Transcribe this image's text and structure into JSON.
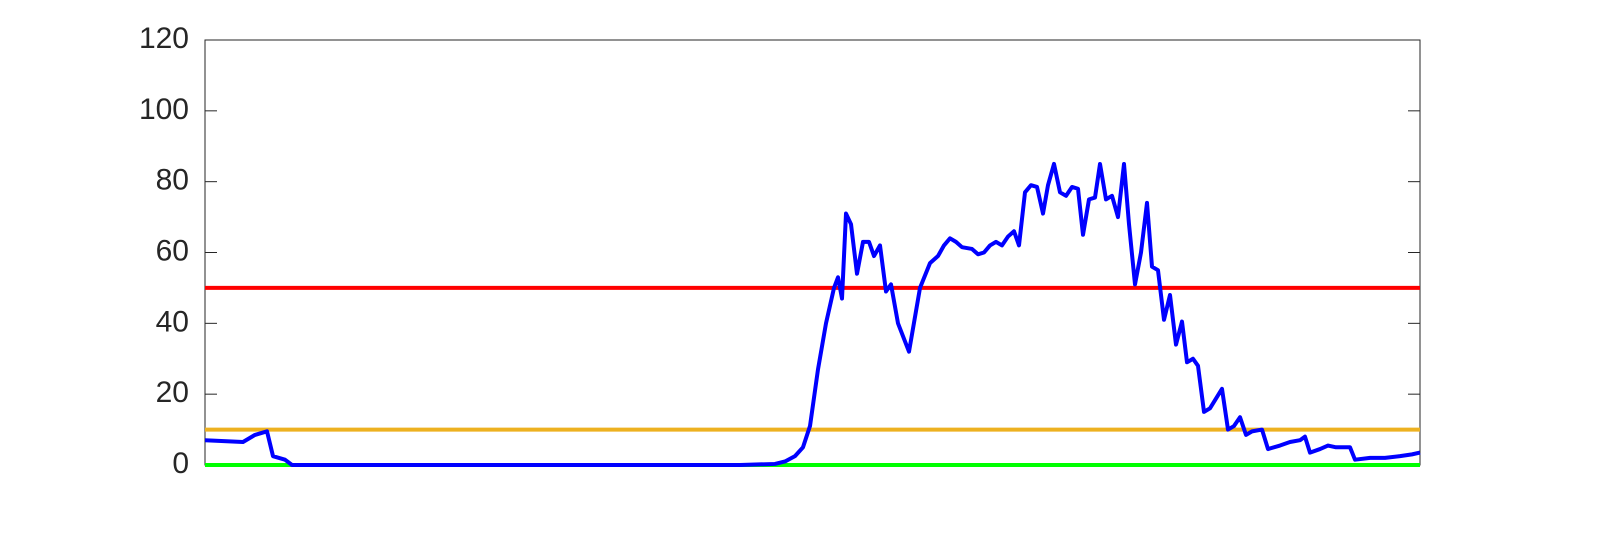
{
  "chart_data": {
    "type": "line",
    "x": [
      0,
      38,
      50,
      62,
      68,
      80,
      87,
      535,
      570,
      580,
      590,
      598,
      605,
      613,
      621,
      629,
      633,
      637,
      641,
      646,
      652,
      658,
      664,
      669,
      675,
      681,
      686,
      693,
      704,
      715,
      725,
      733,
      739,
      745,
      751,
      757,
      767,
      773,
      779,
      785,
      791,
      797,
      803,
      809,
      814,
      820,
      826,
      832,
      838,
      843,
      849,
      855,
      861,
      867,
      873,
      878,
      884,
      890,
      895,
      901,
      907,
      913,
      919,
      924,
      930,
      936,
      942,
      947,
      953,
      959,
      965,
      971,
      977,
      982,
      988,
      993,
      999,
      1005,
      1017,
      1023,
      1029,
      1035,
      1041,
      1047,
      1057,
      1063,
      1075,
      1085,
      1095,
      1100,
      1105,
      1115,
      1123,
      1131,
      1145,
      1150,
      1165,
      1180,
      1195,
      1207,
      1215
    ],
    "xlim": [
      0,
      1215
    ],
    "series": [
      {
        "color": "#0000ff",
        "values": [
          7,
          6.5,
          8.5,
          9.5,
          2.5,
          1.5,
          0,
          0,
          0.3,
          1,
          2.5,
          5,
          11,
          27,
          40,
          50,
          53,
          47,
          71,
          68,
          54,
          63,
          63,
          59,
          62,
          49,
          51,
          40,
          32,
          50,
          57,
          59,
          62,
          64,
          63,
          61.5,
          61,
          59.5,
          60,
          62,
          63,
          62,
          64.5,
          66,
          62,
          77,
          79,
          78.5,
          71,
          79,
          85,
          77,
          76,
          78.5,
          78,
          65,
          75,
          75.5,
          85,
          75,
          76,
          70,
          85,
          68,
          51,
          60,
          74,
          56,
          55,
          41,
          48,
          34,
          40.5,
          29,
          30,
          28,
          15,
          16,
          21.5,
          10,
          11,
          13.5,
          8.5,
          9.5,
          10,
          4.5,
          5.5,
          6.5,
          7,
          8,
          3.5,
          4.5,
          5.5,
          5,
          5,
          1.5,
          2,
          2,
          2.5,
          3,
          3.5
        ]
      }
    ],
    "reference_lines": [
      {
        "value": 50,
        "color": "#ff0000"
      },
      {
        "value": 10,
        "color": "#edb120"
      },
      {
        "value": 0,
        "color": "#00ff00"
      }
    ],
    "ylim": [
      0,
      120
    ],
    "yticks": [
      0,
      20,
      40,
      60,
      80,
      100,
      120
    ]
  }
}
